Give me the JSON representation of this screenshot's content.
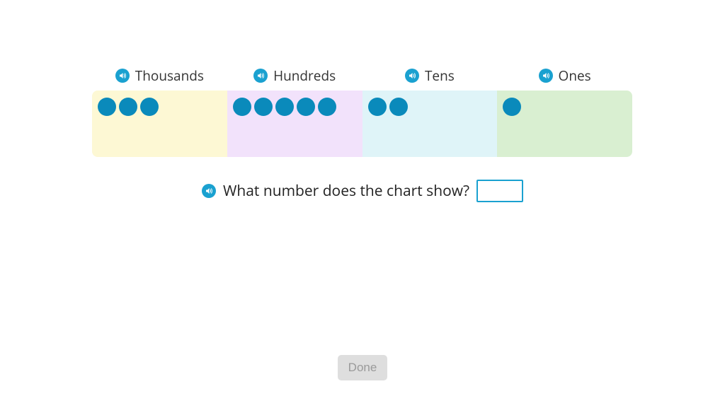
{
  "chart": {
    "border_radius": 8,
    "dot_size": 26,
    "dot_color": "#0a8abb",
    "header_fontsize": 19,
    "header_color": "#333333",
    "speaker_bg": "#1aa1d0",
    "speaker_fg": "#ffffff",
    "columns": [
      {
        "label": "Thousands",
        "bg": "#fdf8d4",
        "count": 3
      },
      {
        "label": "Hundreds",
        "bg": "#f2e2fb",
        "count": 5
      },
      {
        "label": "Tens",
        "bg": "#dff4f8",
        "count": 2
      },
      {
        "label": "Ones",
        "bg": "#d9efd1",
        "count": 1
      }
    ]
  },
  "question": {
    "text": "What number does the chart show?",
    "fontsize": 21,
    "input_value": "",
    "input_border": "#1aa1d0"
  },
  "done_button": {
    "label": "Done",
    "bg": "#dedede",
    "fg": "#9a9a9a",
    "disabled": true
  }
}
